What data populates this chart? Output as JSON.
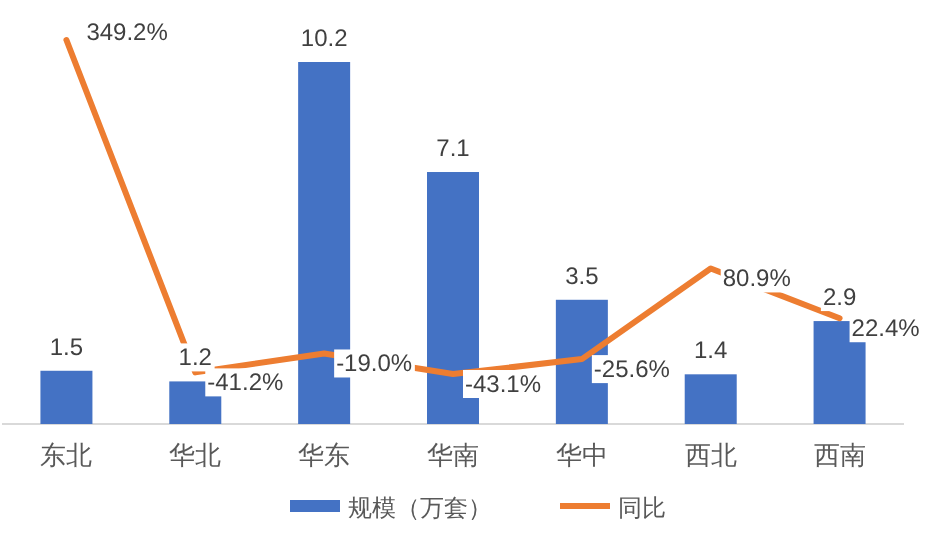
{
  "chart_data": {
    "type": "bar",
    "categories": [
      "东北",
      "华北",
      "华东",
      "华南",
      "华中",
      "西北",
      "西南"
    ],
    "series": [
      {
        "name": "规模（万套）",
        "color": "#4472c4",
        "values": [
          1.5,
          1.2,
          10.2,
          7.1,
          3.5,
          1.4,
          2.9
        ]
      },
      {
        "name": "同比",
        "type": "line",
        "axis": "y2",
        "color": "#ed7d31",
        "values": [
          349.2,
          -41.2,
          -19.0,
          -43.1,
          -25.6,
          80.9,
          22.4
        ],
        "value_labels": [
          "349.2%",
          "-41.2%",
          "-19.0%",
          "-43.1%",
          "-25.6%",
          "80.9%",
          "22.4%"
        ]
      }
    ],
    "data_labels": true,
    "legend": "bottom",
    "marker": "none",
    "tick_labels": "x"
  }
}
